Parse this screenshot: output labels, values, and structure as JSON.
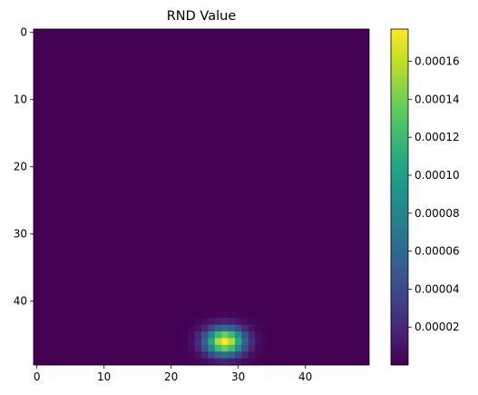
{
  "chart_data": {
    "type": "heatmap",
    "title": "RND Value",
    "xlabel": "",
    "ylabel": "",
    "grid": false,
    "colormap": "viridis",
    "shape": [
      50,
      50
    ],
    "origin": "upper",
    "x_ticks": [
      0,
      10,
      20,
      30,
      40
    ],
    "x_tick_labels": [
      "0",
      "10",
      "20",
      "30",
      "40"
    ],
    "y_ticks": [
      0,
      10,
      20,
      30,
      40
    ],
    "y_tick_labels": [
      "0",
      "10",
      "20",
      "30",
      "40"
    ],
    "peak": {
      "row": 46,
      "col": 28,
      "value": 0.000177
    },
    "spread": {
      "sigma_rows": 1.4,
      "sigma_cols": 2.0
    },
    "background_value": 0,
    "colorbar": {
      "range": [
        0,
        0.000177
      ],
      "ticks": [
        2e-05,
        4e-05,
        6e-05,
        8e-05,
        0.0001,
        0.00012,
        0.00014,
        0.00016
      ],
      "tick_labels": [
        "0.00002",
        "0.00004",
        "0.00006",
        "0.00008",
        "0.00010",
        "0.00012",
        "0.00014",
        "0.00016"
      ]
    }
  }
}
